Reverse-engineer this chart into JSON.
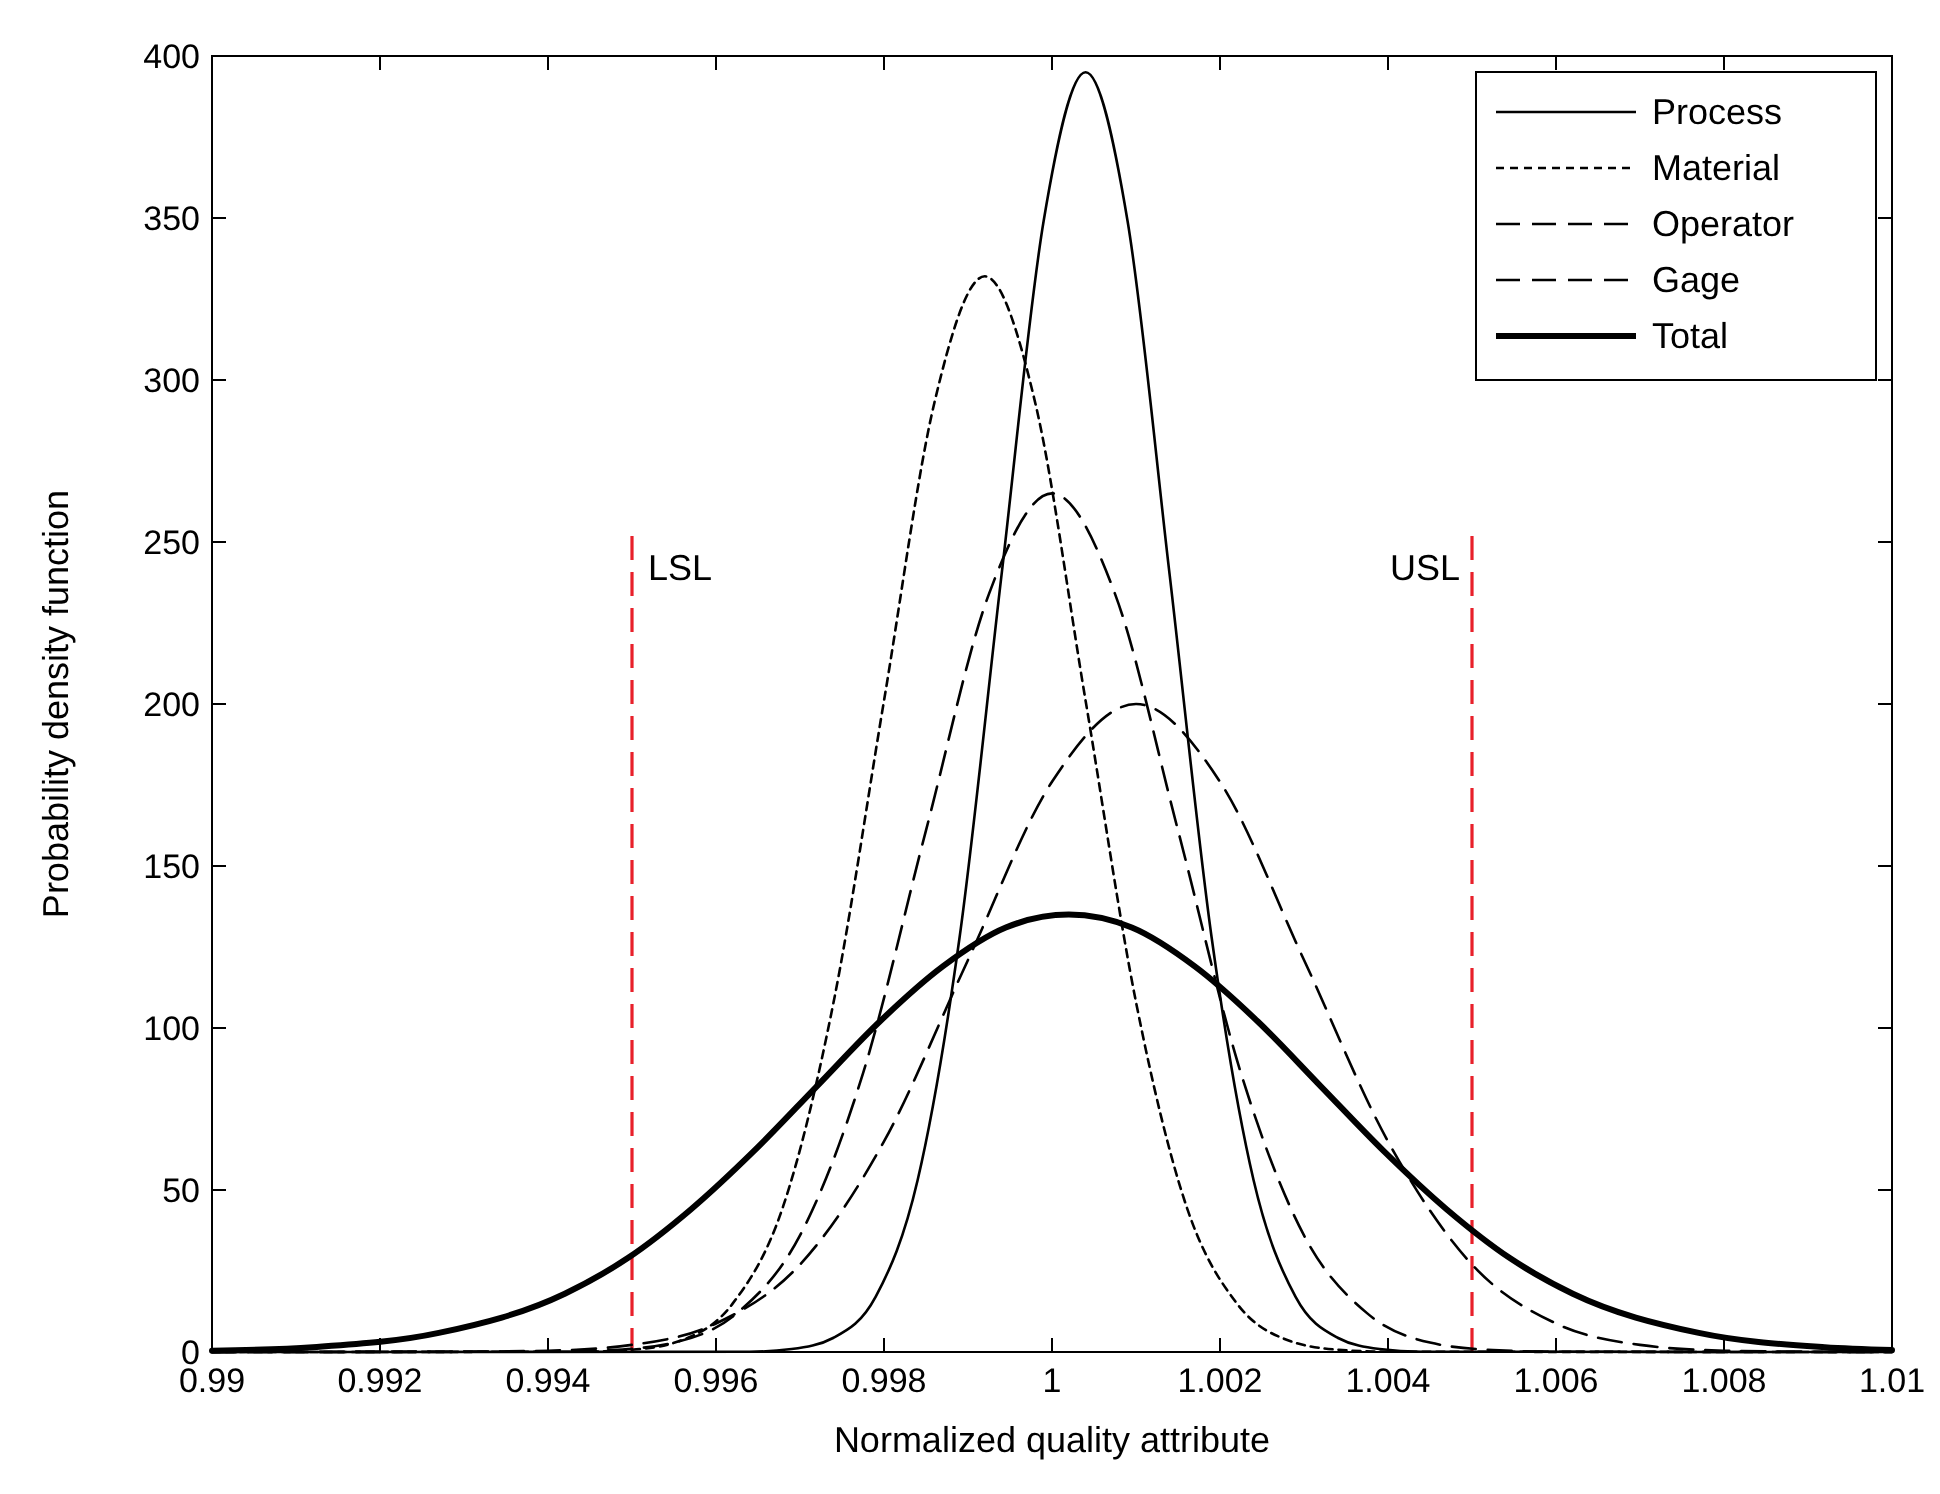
{
  "chart_data": {
    "type": "line",
    "xlabel": "Normalized quality attribute",
    "ylabel": "Probability density function",
    "xlim": [
      0.99,
      1.01
    ],
    "xticks": [
      0.99,
      0.992,
      0.994,
      0.996,
      0.998,
      1,
      1.002,
      1.004,
      1.006,
      1.008,
      1.01
    ],
    "ylim": [
      0,
      400
    ],
    "yticks": [
      0,
      50,
      100,
      150,
      200,
      250,
      300,
      350,
      400
    ],
    "grid": false,
    "legend": "top right",
    "marker": "none",
    "series": [
      {
        "name": "Process",
        "color": "#000000",
        "line_style": "solid",
        "x": [
          0.99,
          0.9964,
          0.9969,
          0.9974,
          0.9979,
          0.9984,
          0.9989,
          0.9994,
          0.9999,
          1.0004,
          1.0009,
          1.0014,
          1.0019,
          1.0024,
          1.0029,
          1.0034,
          1.0039,
          1.0044,
          1.01
        ],
        "values": [
          0,
          0.1,
          0.9,
          4.4,
          17,
          53,
          128,
          240,
          349,
          395,
          349,
          240,
          128,
          53,
          17,
          4.4,
          0.9,
          0.1,
          0
        ]
      },
      {
        "name": "Material",
        "color": "#000000",
        "line_style": "dotted",
        "x": [
          0.99,
          0.9944,
          0.995,
          0.9956,
          0.9962,
          0.9968,
          0.9974,
          0.998,
          0.9986,
          0.9992,
          0.9998,
          1.0004,
          1.001,
          1.0016,
          1.0022,
          1.0028,
          1.0034,
          1.004,
          1.01
        ],
        "values": [
          0,
          0.1,
          0.7,
          3.7,
          15,
          45,
          108,
          201,
          293,
          332,
          293,
          201,
          108,
          45,
          15,
          3.7,
          0.7,
          0.1,
          0
        ]
      },
      {
        "name": "Operator",
        "color": "#000000",
        "line_style": "dashed",
        "x": [
          0.99,
          0.993,
          0.994,
          0.995,
          0.996,
          0.997,
          0.998,
          0.999,
          1.0,
          1.001,
          1.002,
          1.003,
          1.004,
          1.005,
          1.006,
          1.007,
          1.008,
          1.009,
          1.01
        ],
        "values": [
          0,
          0.1,
          0.4,
          2.2,
          8.8,
          27,
          65,
          121,
          176,
          200,
          176,
          121,
          65,
          27,
          8.8,
          2.2,
          0.4,
          0.1,
          0
        ]
      },
      {
        "name": "Gage",
        "color": "#000000",
        "line_style": "dashed",
        "x": [
          0.99,
          0.994,
          0.99475,
          0.9955,
          0.99625,
          0.997,
          0.99775,
          0.9985,
          0.99925,
          1.0,
          1.00075,
          1.0015,
          1.00225,
          1.003,
          1.00375,
          1.0045,
          1.00525,
          1.006,
          1.01
        ],
        "values": [
          0,
          0.1,
          0.6,
          2.9,
          12,
          36,
          86,
          161,
          234,
          265,
          234,
          161,
          86,
          36,
          12,
          2.9,
          0.6,
          0.1,
          0
        ]
      },
      {
        "name": "Total",
        "color": "#000000",
        "line_style": "solid",
        "x": [
          0.99,
          0.9912,
          0.9927,
          0.9942,
          0.99495,
          0.9957,
          0.99645,
          0.9972,
          0.99795,
          0.9987,
          0.99945,
          1.0002,
          1.00095,
          1.0017,
          1.00245,
          1.0032,
          1.00395,
          1.0047,
          1.00545,
          1.0062,
          1.0077,
          1.0092,
          1.01
        ],
        "values": [
          0.4,
          1.5,
          5.9,
          18,
          29,
          44,
          62,
          82,
          102,
          119,
          131,
          135,
          131,
          119,
          102,
          82,
          62,
          44,
          29,
          18,
          5.9,
          1.5,
          0.6
        ]
      }
    ],
    "ref_lines": [
      {
        "axis": "x",
        "value": 0.995,
        "label": "LSL",
        "color": "#e8202a",
        "line_style": "dashed"
      },
      {
        "axis": "x",
        "value": 1.005,
        "label": "USL",
        "color": "#e8202a",
        "line_style": "dashed"
      }
    ]
  }
}
